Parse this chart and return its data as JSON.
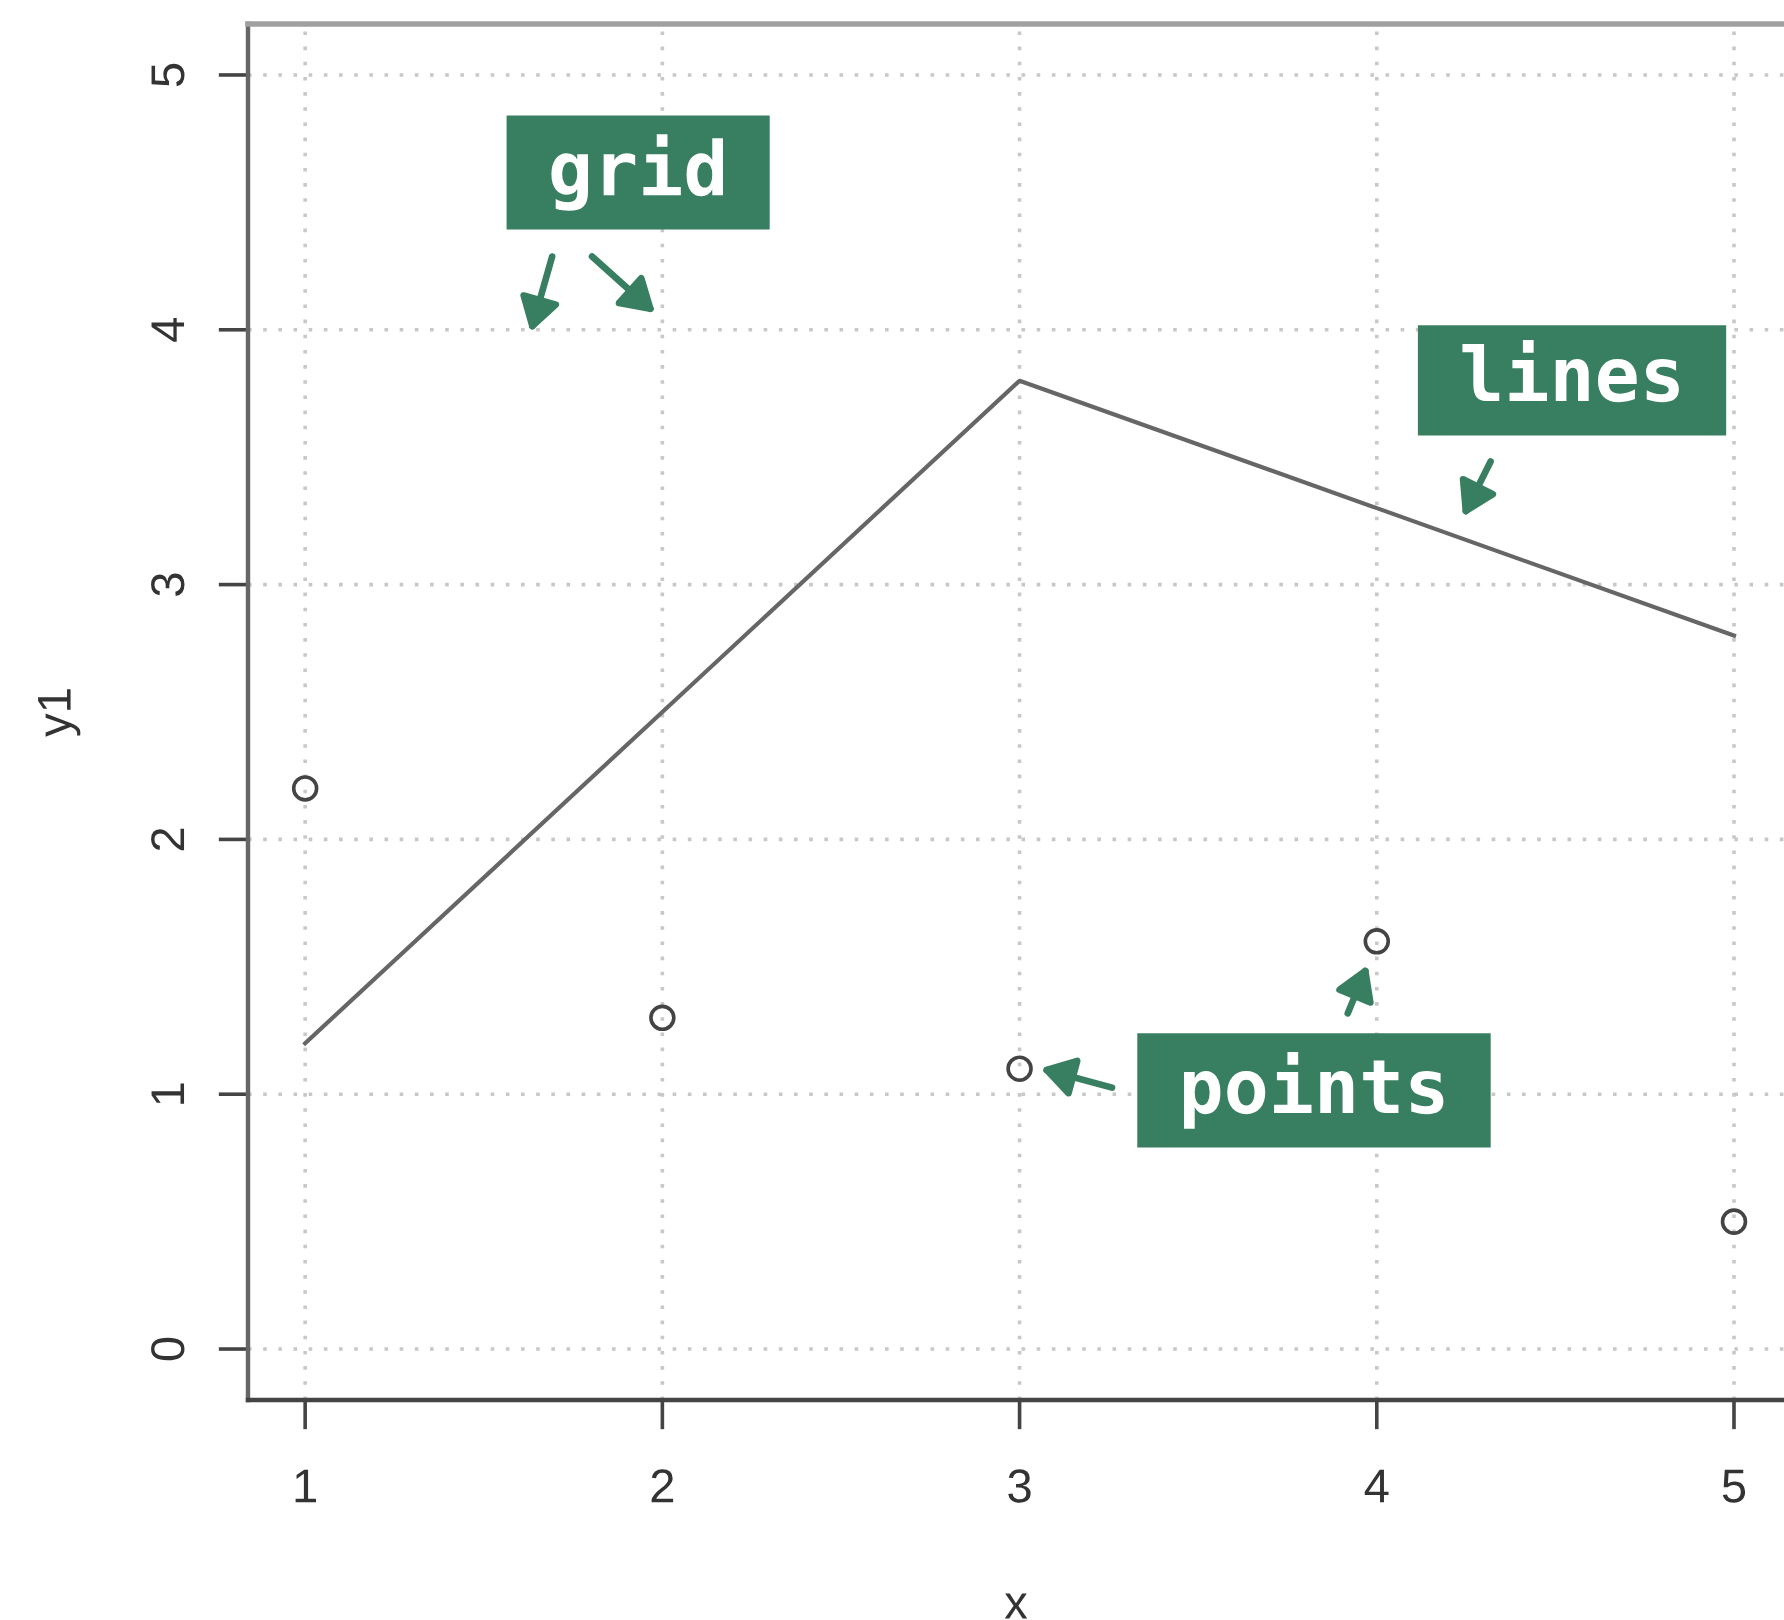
{
  "chart_data": {
    "type": "line",
    "xlabel": "x",
    "ylabel": "y1",
    "x": [
      1,
      2,
      3,
      4,
      5
    ],
    "xlim": [
      0.84,
      5.14
    ],
    "ylim": [
      -0.2,
      5.2
    ],
    "xticks": [
      1,
      2,
      3,
      4,
      5
    ],
    "yticks": [
      0,
      1,
      2,
      3,
      4,
      5
    ],
    "grid": true,
    "series": [
      {
        "color": "#666666",
        "values": [
          1.2,
          2.5,
          3.8,
          3.3,
          2.8
        ],
        "marker": "none",
        "line_style": "solid"
      },
      {
        "type": "scatter",
        "color": "#444444",
        "values": [
          2.2,
          1.3,
          1.1,
          1.6,
          0.5
        ],
        "marker": "circle"
      }
    ],
    "annotations": [
      "grid",
      "lines",
      "points"
    ]
  }
}
